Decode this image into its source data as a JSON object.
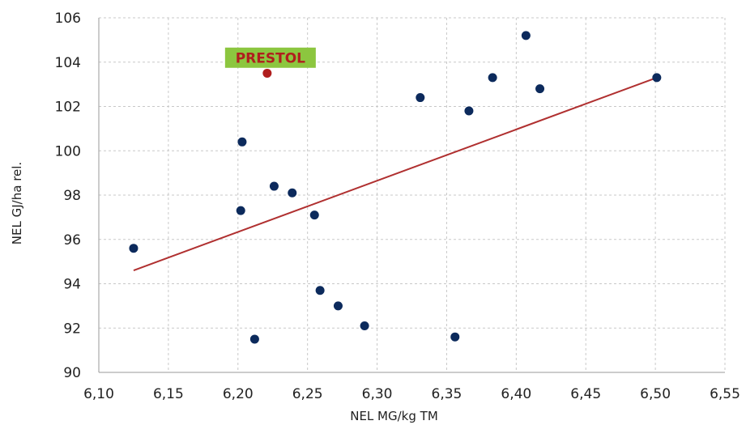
{
  "chart_data": {
    "type": "scatter",
    "title": "",
    "xlabel": "NEL MG/kg TM",
    "ylabel": "NEL GJ/ha rel.",
    "xlim": [
      6.1,
      6.55
    ],
    "ylim": [
      90,
      106
    ],
    "x_ticks": [
      6.1,
      6.15,
      6.2,
      6.25,
      6.3,
      6.35,
      6.4,
      6.45,
      6.5,
      6.55
    ],
    "x_tick_labels": [
      "6,10",
      "6,15",
      "6,20",
      "6,25",
      "6,30",
      "6,35",
      "6,40",
      "6,45",
      "6,50",
      "6,55"
    ],
    "y_ticks": [
      90,
      92,
      94,
      96,
      98,
      100,
      102,
      104,
      106
    ],
    "y_tick_labels": [
      "90",
      "92",
      "94",
      "96",
      "98",
      "100",
      "102",
      "104",
      "106"
    ],
    "grid": true,
    "series": [
      {
        "color": "#0c2a5c",
        "points": [
          {
            "x": 6.125,
            "y": 95.6
          },
          {
            "x": 6.202,
            "y": 97.3
          },
          {
            "x": 6.203,
            "y": 100.4
          },
          {
            "x": 6.212,
            "y": 91.5
          },
          {
            "x": 6.226,
            "y": 98.4
          },
          {
            "x": 6.239,
            "y": 98.1
          },
          {
            "x": 6.255,
            "y": 97.1
          },
          {
            "x": 6.259,
            "y": 93.7
          },
          {
            "x": 6.272,
            "y": 93.0
          },
          {
            "x": 6.291,
            "y": 92.1
          },
          {
            "x": 6.331,
            "y": 102.4
          },
          {
            "x": 6.356,
            "y": 91.6
          },
          {
            "x": 6.366,
            "y": 101.8
          },
          {
            "x": 6.383,
            "y": 103.3
          },
          {
            "x": 6.407,
            "y": 105.2
          },
          {
            "x": 6.417,
            "y": 102.8
          },
          {
            "x": 6.501,
            "y": 103.3
          }
        ]
      },
      {
        "color": "#b01e1e",
        "points": [
          {
            "x": 6.221,
            "y": 103.5
          }
        ]
      }
    ],
    "trendline": {
      "color": "#b03030",
      "from": {
        "x": 6.125,
        "y": 94.6
      },
      "to": {
        "x": 6.501,
        "y": 103.3
      }
    },
    "annotations": [
      {
        "text": "PRESTOL",
        "x": 6.221,
        "y": 104.2,
        "text_color": "#b01e1e",
        "background": "#8cc63f"
      }
    ]
  }
}
